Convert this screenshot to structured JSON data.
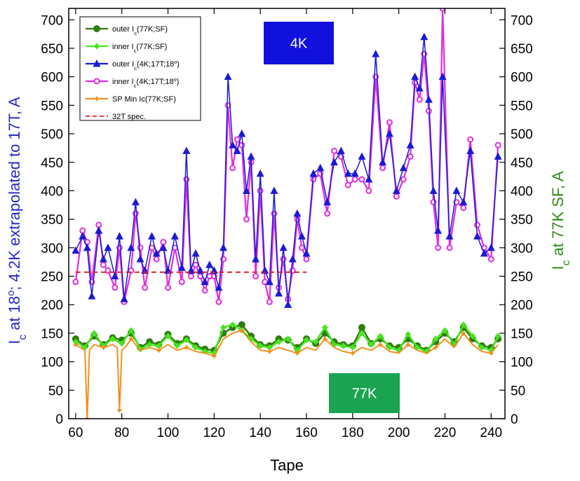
{
  "chart_data": {
    "type": "line",
    "xlabel": "Tape",
    "ylabel_left": [
      "I",
      "c",
      " at 18",
      "o",
      "; 4.2K extrapolated to 17T, A"
    ],
    "ylabel_right": [
      "I",
      "c",
      " at 77K SF, A"
    ],
    "xlim": [
      57,
      246
    ],
    "ylim": [
      0,
      720
    ],
    "x_ticks": [
      60,
      80,
      100,
      120,
      140,
      160,
      180,
      200,
      220,
      240
    ],
    "y_ticks": [
      0,
      50,
      100,
      150,
      200,
      250,
      300,
      350,
      400,
      450,
      500,
      550,
      600,
      650,
      700
    ],
    "grid": false,
    "legend_position": "top-left",
    "annotations": [
      {
        "text": "4K",
        "color": "#1111dd"
      },
      {
        "text": "77K",
        "color": "#1aa351"
      }
    ],
    "series": [
      {
        "name": [
          "outer I",
          "c",
          "(77K;SF)"
        ],
        "color": "#2e7d0e",
        "marker": "circle",
        "x": [
          60,
          64,
          68,
          72,
          76,
          80,
          84,
          88,
          92,
          96,
          100,
          104,
          108,
          112,
          116,
          120,
          124,
          128,
          132,
          136,
          140,
          144,
          148,
          152,
          156,
          160,
          164,
          168,
          172,
          176,
          180,
          184,
          188,
          192,
          196,
          200,
          204,
          208,
          212,
          216,
          220,
          224,
          228,
          232,
          236,
          240,
          243
        ],
        "y": [
          140,
          128,
          145,
          130,
          142,
          138,
          150,
          125,
          135,
          130,
          148,
          132,
          140,
          128,
          122,
          120,
          150,
          160,
          165,
          145,
          130,
          128,
          140,
          138,
          125,
          140,
          132,
          150,
          135,
          130,
          128,
          160,
          132,
          140,
          128,
          125,
          140,
          128,
          120,
          135,
          150,
          135,
          160,
          140,
          128,
          125,
          140
        ]
      },
      {
        "name": [
          "inner I",
          "c",
          "(77K;SF)"
        ],
        "color": "#47e61e",
        "marker": "diamond",
        "x": [
          60,
          64,
          68,
          72,
          76,
          80,
          84,
          88,
          92,
          96,
          100,
          104,
          108,
          112,
          116,
          120,
          124,
          128,
          132,
          136,
          140,
          144,
          148,
          152,
          156,
          160,
          164,
          168,
          172,
          176,
          180,
          184,
          188,
          192,
          196,
          200,
          204,
          208,
          212,
          216,
          220,
          224,
          228,
          232,
          236,
          240,
          243
        ],
        "y": [
          135,
          125,
          150,
          128,
          140,
          132,
          155,
          122,
          130,
          128,
          145,
          128,
          138,
          125,
          118,
          115,
          160,
          165,
          155,
          140,
          128,
          125,
          135,
          140,
          120,
          138,
          135,
          160,
          130,
          128,
          125,
          150,
          130,
          145,
          125,
          120,
          148,
          125,
          118,
          140,
          155,
          130,
          165,
          145,
          125,
          120,
          145
        ]
      },
      {
        "name": [
          "outer I",
          "c",
          "(4K;17T;18",
          "o",
          ")"
        ],
        "color": "#1a1ad6",
        "marker": "triangle",
        "x": [
          60,
          63,
          65,
          67,
          70,
          72,
          74,
          77,
          79,
          81,
          84,
          86,
          88,
          90,
          93,
          95,
          98,
          100,
          103,
          106,
          108,
          110,
          112,
          114,
          116,
          118,
          120,
          122,
          124,
          126,
          128,
          130,
          132,
          134,
          136,
          138,
          140,
          142,
          144,
          146,
          148,
          150,
          152,
          154,
          156,
          158,
          160,
          163,
          166,
          169,
          172,
          175,
          178,
          181,
          184,
          187,
          190,
          193,
          196,
          199,
          202,
          205,
          207,
          209,
          211,
          213,
          215,
          217,
          219,
          222,
          225,
          228,
          231,
          234,
          237,
          240,
          243
        ],
        "y": [
          295,
          320,
          300,
          215,
          330,
          280,
          300,
          250,
          320,
          210,
          300,
          380,
          280,
          260,
          320,
          290,
          300,
          260,
          320,
          265,
          470,
          260,
          290,
          260,
          240,
          270,
          260,
          230,
          300,
          600,
          480,
          470,
          500,
          400,
          460,
          280,
          430,
          260,
          240,
          400,
          220,
          300,
          200,
          280,
          360,
          320,
          290,
          430,
          440,
          380,
          450,
          470,
          430,
          430,
          460,
          420,
          640,
          450,
          500,
          400,
          440,
          480,
          600,
          580,
          670,
          560,
          400,
          330,
          600,
          320,
          400,
          380,
          470,
          320,
          290,
          300,
          460
        ]
      },
      {
        "name": [
          "inner I",
          "c",
          "(4K;17T;18",
          "o",
          ")"
        ],
        "color": "#e02ce0",
        "marker": "circle-open",
        "x": [
          60,
          63,
          65,
          67,
          70,
          72,
          74,
          77,
          79,
          81,
          84,
          86,
          88,
          90,
          93,
          95,
          98,
          100,
          103,
          106,
          108,
          110,
          112,
          114,
          116,
          118,
          120,
          122,
          124,
          126,
          128,
          130,
          132,
          134,
          136,
          138,
          140,
          142,
          144,
          146,
          148,
          150,
          152,
          154,
          156,
          158,
          160,
          163,
          166,
          169,
          172,
          175,
          178,
          181,
          184,
          187,
          190,
          193,
          196,
          199,
          202,
          205,
          207,
          209,
          211,
          213,
          215,
          217,
          219,
          222,
          225,
          228,
          231,
          234,
          237,
          240,
          243
        ],
        "y": [
          240,
          330,
          310,
          240,
          340,
          270,
          260,
          230,
          300,
          205,
          260,
          360,
          300,
          230,
          300,
          280,
          310,
          230,
          300,
          240,
          420,
          250,
          270,
          250,
          225,
          250,
          250,
          205,
          280,
          550,
          440,
          490,
          480,
          350,
          450,
          250,
          400,
          240,
          205,
          360,
          230,
          280,
          210,
          260,
          350,
          300,
          280,
          420,
          430,
          360,
          470,
          460,
          410,
          420,
          420,
          400,
          600,
          440,
          520,
          390,
          420,
          460,
          590,
          560,
          640,
          540,
          380,
          300,
          720,
          300,
          380,
          370,
          490,
          340,
          300,
          280,
          480
        ]
      },
      {
        "name": "SP Min Ic(77K;SF)",
        "color": "#f0901e",
        "marker": "star",
        "x": [
          60,
          62,
          64,
          65,
          66,
          68,
          72,
          76,
          78,
          79,
          80,
          82,
          84,
          88,
          92,
          96,
          100,
          104,
          108,
          112,
          116,
          120,
          124,
          128,
          132,
          136,
          140,
          144,
          148,
          152,
          156,
          160,
          164,
          168,
          172,
          176,
          180,
          184,
          188,
          192,
          196,
          200,
          204,
          208,
          212,
          216,
          220,
          224,
          228,
          232,
          236,
          240,
          243
        ],
        "y": [
          130,
          125,
          120,
          0,
          120,
          130,
          125,
          130,
          125,
          15,
          120,
          128,
          140,
          120,
          125,
          120,
          130,
          120,
          125,
          118,
          115,
          110,
          140,
          150,
          155,
          135,
          120,
          118,
          125,
          120,
          115,
          125,
          120,
          140,
          125,
          118,
          115,
          125,
          120,
          130,
          118,
          115,
          130,
          120,
          115,
          125,
          140,
          125,
          150,
          130,
          118,
          115,
          130
        ]
      },
      {
        "name": "32T spec.",
        "color": "#e02020",
        "marker": "dash",
        "x": [
          60,
          160
        ],
        "y": [
          257,
          257
        ]
      }
    ]
  }
}
